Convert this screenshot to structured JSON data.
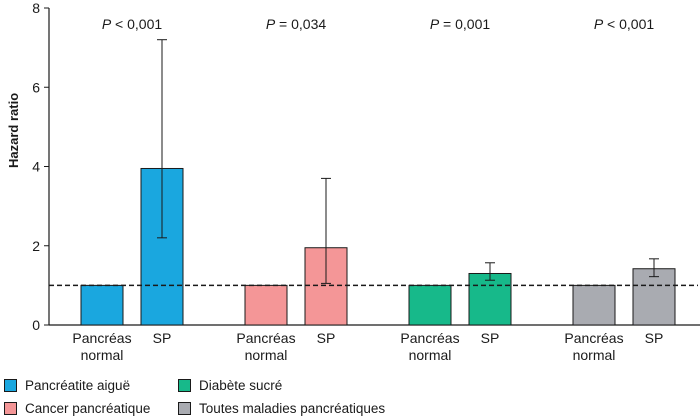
{
  "chart_data": {
    "type": "bar",
    "ylabel": "Hazard ratio",
    "ylim": [
      0,
      8
    ],
    "yticks": [
      "0",
      "2",
      "4",
      "6",
      "8"
    ],
    "reference_line": 1,
    "reference_style": "dashed",
    "groups": [
      {
        "legend": "Pancréatite aiguë",
        "color": "#1aa7df",
        "pvalue": "P < 0,001",
        "bars": [
          {
            "label": "Pancréas\nnormal",
            "value": 1.0
          },
          {
            "label": "SP",
            "value": 3.95,
            "ci_low": 2.2,
            "ci_high": 7.2
          }
        ]
      },
      {
        "legend": "Cancer pancréatique",
        "color": "#f49697",
        "pvalue": "P = 0,034",
        "bars": [
          {
            "label": "Pancréas\nnormal",
            "value": 1.0
          },
          {
            "label": "SP",
            "value": 1.95,
            "ci_low": 1.05,
            "ci_high": 3.7
          }
        ]
      },
      {
        "legend": "Diabète sucré",
        "color": "#17b98a",
        "pvalue": "P = 0,001",
        "bars": [
          {
            "label": "Pancréas\nnormal",
            "value": 1.0
          },
          {
            "label": "SP",
            "value": 1.3,
            "ci_low": 1.13,
            "ci_high": 1.57
          }
        ]
      },
      {
        "legend": "Toutes maladies pancréatiques",
        "color": "#a9abb1",
        "pvalue": "P < 0,001",
        "bars": [
          {
            "label": "Pancréas\nnormal",
            "value": 1.0
          },
          {
            "label": "SP",
            "value": 1.42,
            "ci_low": 1.22,
            "ci_high": 1.67
          }
        ]
      }
    ]
  }
}
